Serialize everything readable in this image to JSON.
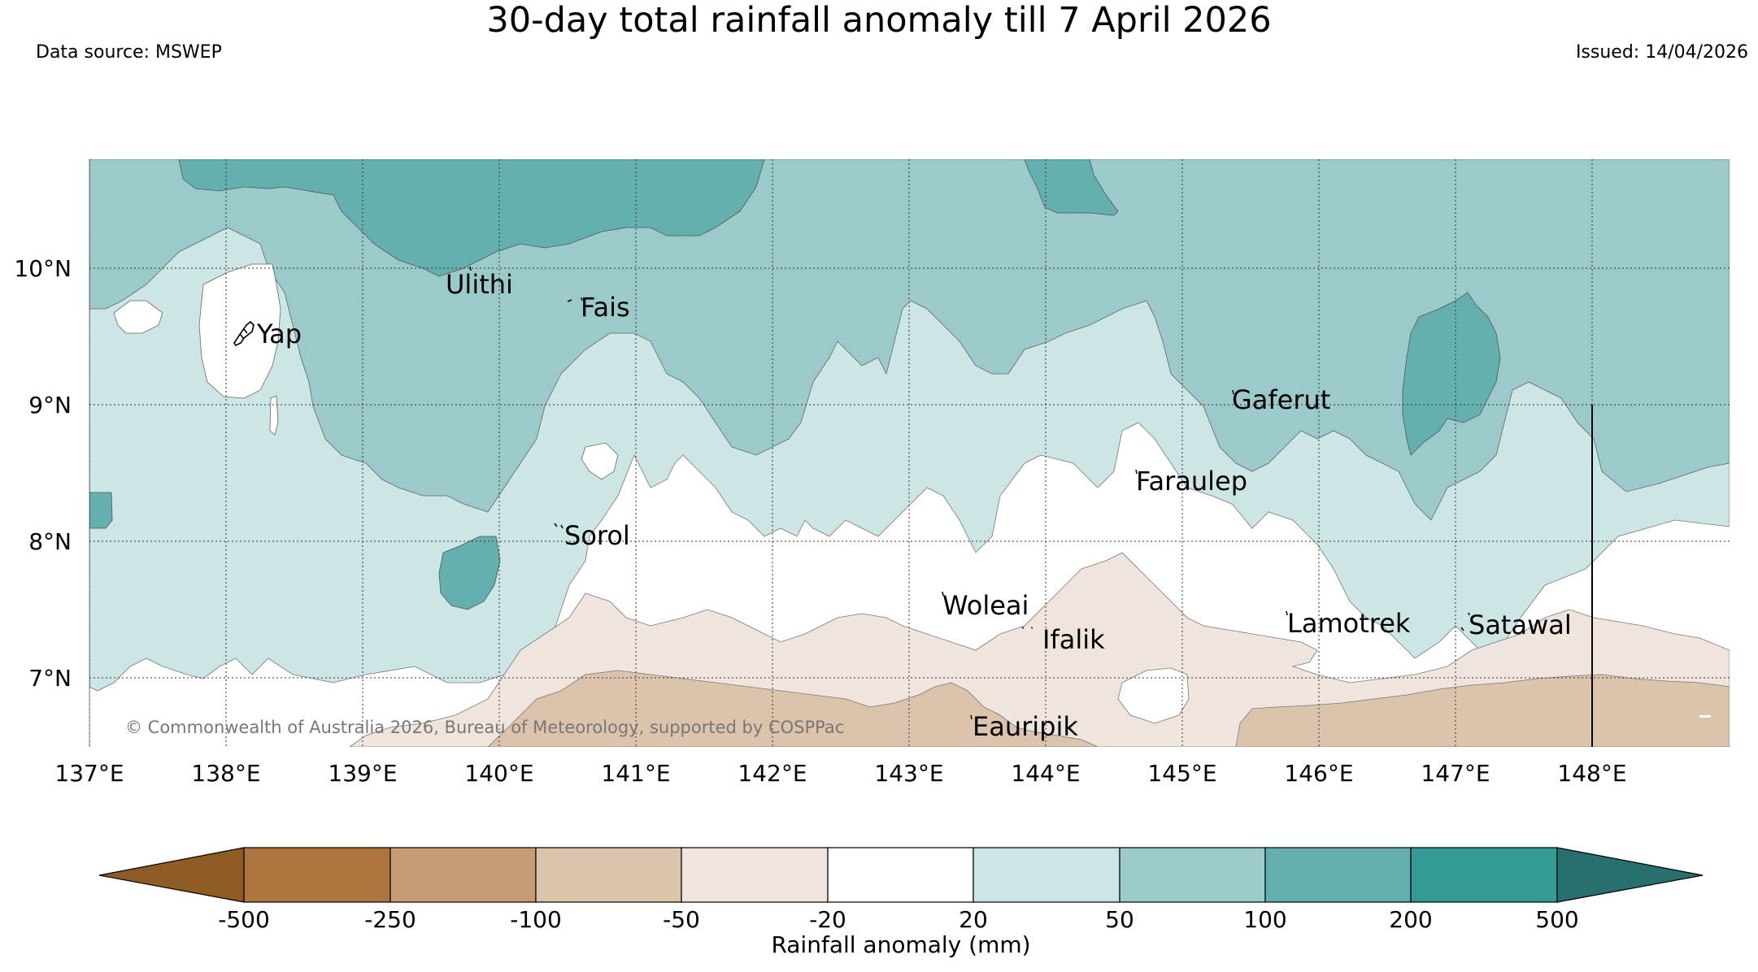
{
  "header": {
    "title": "30-day total rainfall anomaly till 7 April 2026",
    "source": "Data source: MSWEP",
    "issued": "Issued: 14/04/2026"
  },
  "map": {
    "lon_labels": [
      "137°E",
      "138°E",
      "139°E",
      "140°E",
      "141°E",
      "142°E",
      "143°E",
      "144°E",
      "145°E",
      "146°E",
      "147°E",
      "148°E"
    ],
    "lat_labels": [
      "10°N",
      "9°N",
      "8°N",
      "7°N"
    ],
    "places": [
      "Ulithi",
      "Fais",
      "Yap",
      "Gaferut",
      "Faraulep",
      "Sorol",
      "Woleai",
      "Ifalik",
      "Lamotrek",
      "Satawal",
      "Eauripik"
    ],
    "copyright": "© Commonwealth of Australia 2026, Bureau of Meteorology, supported by COSPPac"
  },
  "colorbar": {
    "ticks": [
      "-500",
      "-250",
      "-100",
      "-50",
      "-20",
      "20",
      "50",
      "100",
      "200",
      "500"
    ],
    "label": "Rainfall anomaly (mm)",
    "colors": [
      "#8f5b24",
      "#ad753d",
      "#c69c74",
      "#dcc3ab",
      "#f0e5dc",
      "#ffffff",
      "#cce5e5",
      "#9acaca",
      "#64b0b0",
      "#339995",
      "#27706d"
    ]
  },
  "colors": {
    "c20": "#cce5e5",
    "c50": "#9acaca",
    "c100": "#64b0b0",
    "n20": "#f0e5dc",
    "n50": "#dcc3ab",
    "land_line": "#000000"
  }
}
